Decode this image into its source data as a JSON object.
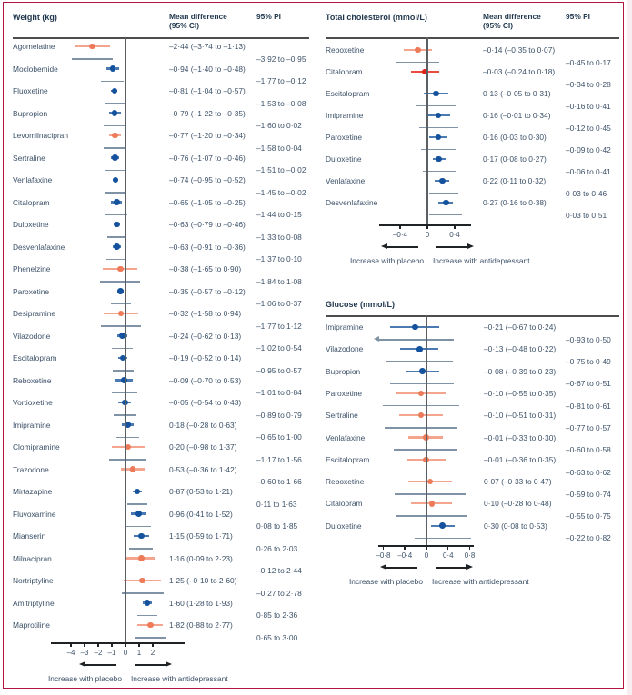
{
  "colors": {
    "frame": "#b01441",
    "blue_dot": "#14529e",
    "blue_line": "#4b79b2",
    "orange_dot": "#ed7b5a",
    "orange_line": "#f4a58e",
    "red_dot": "#e02318",
    "red_line": "#ea4a40",
    "pi_line": "#8093a6",
    "zero_line": "#5a5f63",
    "axis": "#1f2326",
    "text": "#3c5168",
    "heading": "#1f364d",
    "rule": "#4d4d4d"
  },
  "headers": {
    "mean_line1": "Mean difference",
    "mean_line2": "(95% CI)",
    "pi": "95% PI"
  },
  "footer": {
    "left": "Increase with placebo",
    "right": "Increase with antidepressant"
  },
  "chart_data": [
    {
      "type": "forest",
      "title": "Weight (kg)",
      "xlabel": "",
      "xlim": [
        -5.4,
        4.27
      ],
      "grid": false,
      "ticks": [
        {
          "v": -4,
          "label": "–4"
        },
        {
          "v": -3,
          "label": "–3"
        },
        {
          "v": -2,
          "label": "–2"
        },
        {
          "v": -1,
          "label": "–1"
        },
        {
          "v": 0,
          "label": "0"
        },
        {
          "v": 1,
          "label": "1"
        },
        {
          "v": 2,
          "label": "2"
        }
      ],
      "rows": [
        {
          "drug": "Agomelatine",
          "mean": -2.44,
          "ci": [
            -3.74,
            -1.13
          ],
          "pi": [
            -3.92,
            -0.95
          ],
          "mean_ci_text": "–2·44 (–3·74 to –1·13)",
          "pi_text": "–3·92 to –0·95",
          "color": "orange"
        },
        {
          "drug": "Moclobemide",
          "mean": -0.94,
          "ci": [
            -1.4,
            -0.48
          ],
          "pi": [
            -1.77,
            -0.12
          ],
          "mean_ci_text": "–0·94 (–1·40 to –0·48)",
          "pi_text": "–1·77 to –0·12",
          "color": "blue"
        },
        {
          "drug": "Fluoxetine",
          "mean": -0.81,
          "ci": [
            -1.04,
            -0.57
          ],
          "pi": [
            -1.53,
            -0.08
          ],
          "mean_ci_text": "–0·81 (–1·04 to –0·57)",
          "pi_text": "–1·53 to –0·08",
          "color": "blue"
        },
        {
          "drug": "Bupropion",
          "mean": -0.79,
          "ci": [
            -1.22,
            -0.35
          ],
          "pi": [
            -1.6,
            0.02
          ],
          "mean_ci_text": "–0·79 (–1·22 to –0·35)",
          "pi_text": "–1·60 to 0·02",
          "color": "blue"
        },
        {
          "drug": "Levomilnacipran",
          "mean": -0.77,
          "ci": [
            -1.2,
            -0.34
          ],
          "pi": [
            -1.58,
            0.04
          ],
          "mean_ci_text": "–0·77 (–1·20 to –0·34)",
          "pi_text": "–1·58 to 0·04",
          "color": "orange"
        },
        {
          "drug": "Sertraline",
          "mean": -0.76,
          "ci": [
            -1.07,
            -0.46
          ],
          "pi": [
            -1.51,
            -0.02
          ],
          "mean_ci_text": "–0·76 (–1·07 to –0·46)",
          "pi_text": "–1·51 to –0·02",
          "color": "blue"
        },
        {
          "drug": "Venlafaxine",
          "mean": -0.74,
          "ci": [
            -0.95,
            -0.52
          ],
          "pi": [
            -1.45,
            -0.02
          ],
          "mean_ci_text": "–0·74 (–0·95 to –0·52)",
          "pi_text": "–1·45 to –0·02",
          "color": "blue"
        },
        {
          "drug": "Citalopram",
          "mean": -0.65,
          "ci": [
            -1.05,
            -0.25
          ],
          "pi": [
            -1.44,
            0.15
          ],
          "mean_ci_text": "–0·65 (–1·05 to –0·25)",
          "pi_text": "–1·44 to 0·15",
          "color": "blue"
        },
        {
          "drug": "Duloxetine",
          "mean": -0.63,
          "ci": [
            -0.79,
            -0.46
          ],
          "pi": [
            -1.33,
            0.08
          ],
          "mean_ci_text": "–0·63 (–0·79 to –0·46)",
          "pi_text": "–1·33 to 0·08",
          "color": "blue"
        },
        {
          "drug": "Desvenlafaxine",
          "mean": -0.63,
          "ci": [
            -0.91,
            -0.36
          ],
          "pi": [
            -1.37,
            0.1
          ],
          "mean_ci_text": "–0·63 (–0·91 to –0·36)",
          "pi_text": "–1·37 to 0·10",
          "color": "blue"
        },
        {
          "drug": "Phenelzine",
          "mean": -0.38,
          "ci": [
            -1.65,
            0.9
          ],
          "pi": [
            -1.84,
            1.08
          ],
          "mean_ci_text": "–0·38 (–1·65 to 0·90)",
          "pi_text": "–1·84 to 1·08",
          "color": "orange"
        },
        {
          "drug": "Paroxetine",
          "mean": -0.35,
          "ci": [
            -0.57,
            -0.12
          ],
          "pi": [
            -1.06,
            0.37
          ],
          "mean_ci_text": "–0·35 (–0·57 to –0·12)",
          "pi_text": "–1·06 to 0·37",
          "color": "blue"
        },
        {
          "drug": "Desipramine",
          "mean": -0.32,
          "ci": [
            -1.58,
            0.94
          ],
          "pi": [
            -1.77,
            1.12
          ],
          "mean_ci_text": "–0·32 (–1·58 to 0·94)",
          "pi_text": "–1·77 to 1·12",
          "color": "orange"
        },
        {
          "drug": "Vilazodone",
          "mean": -0.24,
          "ci": [
            -0.62,
            0.13
          ],
          "pi": [
            -1.02,
            0.54
          ],
          "mean_ci_text": "–0·24 (–0·62 to 0·13)",
          "pi_text": "–1·02 to 0·54",
          "color": "blue"
        },
        {
          "drug": "Escitalopram",
          "mean": -0.19,
          "ci": [
            -0.52,
            0.14
          ],
          "pi": [
            -0.95,
            0.57
          ],
          "mean_ci_text": "–0·19 (–0·52 to 0·14)",
          "pi_text": "–0·95 to 0·57",
          "color": "blue"
        },
        {
          "drug": "Reboxetine",
          "mean": -0.09,
          "ci": [
            -0.7,
            0.53
          ],
          "pi": [
            -1.01,
            0.84
          ],
          "mean_ci_text": "–0·09 (–0·70 to 0·53)",
          "pi_text": "–1·01 to 0·84",
          "color": "blue"
        },
        {
          "drug": "Vortioxetine",
          "mean": -0.05,
          "ci": [
            -0.54,
            0.43
          ],
          "pi": [
            -0.89,
            0.79
          ],
          "mean_ci_text": "–0·05 (–0·54 to 0·43)",
          "pi_text": "–0·89 to 0·79",
          "color": "blue"
        },
        {
          "drug": "Imipramine",
          "mean": 0.18,
          "ci": [
            -0.28,
            0.63
          ],
          "pi": [
            -0.65,
            1.0
          ],
          "mean_ci_text": "0·18 (–0·28 to 0·63)",
          "pi_text": "–0·65 to 1·00",
          "color": "blue"
        },
        {
          "drug": "Clomipramine",
          "mean": 0.2,
          "ci": [
            -0.98,
            1.37
          ],
          "pi": [
            -1.17,
            1.56
          ],
          "mean_ci_text": "0·20 (–0·98 to 1·37)",
          "pi_text": "–1·17 to 1·56",
          "color": "orange"
        },
        {
          "drug": "Trazodone",
          "mean": 0.53,
          "ci": [
            -0.36,
            1.42
          ],
          "pi": [
            -0.6,
            1.66
          ],
          "mean_ci_text": "0·53 (–0·36 to 1·42)",
          "pi_text": "–0·60 to 1·66",
          "color": "orange"
        },
        {
          "drug": "Mirtazapine",
          "mean": 0.87,
          "ci": [
            0.53,
            1.21
          ],
          "pi": [
            0.11,
            1.63
          ],
          "mean_ci_text": "0·87 (0·53 to 1·21)",
          "pi_text": "0·11 to 1·63",
          "color": "blue"
        },
        {
          "drug": "Fluvoxamine",
          "mean": 0.96,
          "ci": [
            0.41,
            1.52
          ],
          "pi": [
            0.08,
            1.85
          ],
          "mean_ci_text": "0·96 (0·41 to 1·52)",
          "pi_text": "0·08 to 1·85",
          "color": "blue"
        },
        {
          "drug": "Mianserin",
          "mean": 1.15,
          "ci": [
            0.59,
            1.71
          ],
          "pi": [
            0.26,
            2.03
          ],
          "mean_ci_text": "1·15 (0·59 to 1·71)",
          "pi_text": "0·26 to 2·03",
          "color": "blue"
        },
        {
          "drug": "Milnacipran",
          "mean": 1.16,
          "ci": [
            0.09,
            2.23
          ],
          "pi": [
            -0.12,
            2.44
          ],
          "mean_ci_text": "1·16 (0·09 to 2·23)",
          "pi_text": "–0·12 to 2·44",
          "color": "orange"
        },
        {
          "drug": "Nortriptyline",
          "mean": 1.25,
          "ci": [
            -0.1,
            2.6
          ],
          "pi": [
            -0.27,
            2.78
          ],
          "mean_ci_text": "1·25 (–0·10 to 2·60)",
          "pi_text": "–0·27 to 2·78",
          "color": "orange"
        },
        {
          "drug": "Amitriptyline",
          "mean": 1.6,
          "ci": [
            1.28,
            1.93
          ],
          "pi": [
            0.85,
            2.36
          ],
          "mean_ci_text": "1·60 (1·28 to 1·93)",
          "pi_text": "0·85 to 2·36",
          "color": "blue"
        },
        {
          "drug": "Maprotiline",
          "mean": 1.82,
          "ci": [
            0.88,
            2.77
          ],
          "pi": [
            0.65,
            3.0
          ],
          "mean_ci_text": "1·82 (0·88 to 2·77)",
          "pi_text": "0·65 to 3·00",
          "color": "orange"
        }
      ]
    },
    {
      "type": "forest",
      "title": "Total cholesterol (mmol/L)",
      "xlabel": "",
      "xlim": [
        -0.693,
        0.627
      ],
      "grid": false,
      "ticks": [
        {
          "v": -0.4,
          "label": "–0·4"
        },
        {
          "v": 0,
          "label": "0"
        },
        {
          "v": 0.4,
          "label": "0·4"
        }
      ],
      "rows": [
        {
          "drug": "Reboxetine",
          "mean": -0.14,
          "ci": [
            -0.35,
            0.07
          ],
          "pi": [
            -0.45,
            0.17
          ],
          "mean_ci_text": "–0·14 (–0·35 to 0·07)",
          "pi_text": "–0·45 to 0·17",
          "color": "orange"
        },
        {
          "drug": "Citalopram",
          "mean": -0.03,
          "ci": [
            -0.24,
            0.18
          ],
          "pi": [
            -0.34,
            0.28
          ],
          "mean_ci_text": "–0·03 (–0·24 to 0·18)",
          "pi_text": "–0·34 to 0·28",
          "color": "red"
        },
        {
          "drug": "Escitalopram",
          "mean": 0.13,
          "ci": [
            -0.05,
            0.31
          ],
          "pi": [
            -0.16,
            0.41
          ],
          "mean_ci_text": "0·13 (–0·05 to 0·31)",
          "pi_text": "–0·16 to 0·41",
          "color": "blue"
        },
        {
          "drug": "Imipramine",
          "mean": 0.16,
          "ci": [
            -0.01,
            0.34
          ],
          "pi": [
            -0.12,
            0.45
          ],
          "mean_ci_text": "0·16 (–0·01 to 0·34)",
          "pi_text": "–0·12 to 0·45",
          "color": "blue"
        },
        {
          "drug": "Paroxetine",
          "mean": 0.16,
          "ci": [
            0.03,
            0.3
          ],
          "pi": [
            -0.09,
            0.42
          ],
          "mean_ci_text": "0·16 (0·03 to 0·30)",
          "pi_text": "–0·09 to 0·42",
          "color": "blue"
        },
        {
          "drug": "Duloxetine",
          "mean": 0.17,
          "ci": [
            0.08,
            0.27
          ],
          "pi": [
            -0.06,
            0.41
          ],
          "mean_ci_text": "0·17 (0·08 to 0·27)",
          "pi_text": "–0·06 to 0·41",
          "color": "blue"
        },
        {
          "drug": "Venlafaxine",
          "mean": 0.22,
          "ci": [
            0.11,
            0.32
          ],
          "pi": [
            0.03,
            0.46
          ],
          "mean_ci_text": "0·22 (0·11 to 0·32)",
          "pi_text": "0·03 to 0·46",
          "color": "blue"
        },
        {
          "drug": "Desvenlafaxine",
          "mean": 0.27,
          "ci": [
            0.16,
            0.38
          ],
          "pi": [
            0.03,
            0.51
          ],
          "mean_ci_text": "0·27 (0·16 to 0·38)",
          "pi_text": "0·03 to 0·51",
          "color": "blue"
        }
      ]
    },
    {
      "type": "forest",
      "title": "Glucose (mmol/L)",
      "xlabel": "",
      "xlim": [
        -0.875,
        0.859
      ],
      "grid": false,
      "ticks": [
        {
          "v": -0.8,
          "label": "–0·8"
        },
        {
          "v": -0.4,
          "label": "–0·4"
        },
        {
          "v": 0,
          "label": "0"
        },
        {
          "v": 0.4,
          "label": "0·4"
        },
        {
          "v": 0.8,
          "label": "0·8"
        }
      ],
      "rows": [
        {
          "drug": "Imipramine",
          "mean": -0.21,
          "ci": [
            -0.67,
            0.24
          ],
          "pi": [
            -0.93,
            0.5
          ],
          "mean_ci_text": "–0·21 (–0·67 to 0·24)",
          "pi_text": "–0·93 to 0·50",
          "color": "blue"
        },
        {
          "drug": "Vilazodone",
          "mean": -0.13,
          "ci": [
            -0.48,
            0.22
          ],
          "pi": [
            -0.75,
            0.49
          ],
          "mean_ci_text": "–0·13 (–0·48 to 0·22)",
          "pi_text": "–0·75 to 0·49",
          "color": "blue"
        },
        {
          "drug": "Bupropion",
          "mean": -0.08,
          "ci": [
            -0.39,
            0.23
          ],
          "pi": [
            -0.67,
            0.51
          ],
          "mean_ci_text": "–0·08 (–0·39 to 0·23)",
          "pi_text": "–0·67 to 0·51",
          "color": "blue"
        },
        {
          "drug": "Paroxetine",
          "mean": -0.1,
          "ci": [
            -0.55,
            0.35
          ],
          "pi": [
            -0.81,
            0.61
          ],
          "mean_ci_text": "–0·10 (–0·55 to 0·35)",
          "pi_text": "–0·81 to 0·61",
          "color": "orange"
        },
        {
          "drug": "Sertraline",
          "mean": -0.1,
          "ci": [
            -0.51,
            0.31
          ],
          "pi": [
            -0.77,
            0.57
          ],
          "mean_ci_text": "–0·10 (–0·51 to 0·31)",
          "pi_text": "–0·77 to 0·57",
          "color": "orange"
        },
        {
          "drug": "Venlafaxine",
          "mean": -0.01,
          "ci": [
            -0.33,
            0.3
          ],
          "pi": [
            -0.6,
            0.58
          ],
          "mean_ci_text": "–0·01 (–0·33 to 0·30)",
          "pi_text": "–0·60 to 0·58",
          "color": "orange"
        },
        {
          "drug": "Escitalopram",
          "mean": -0.01,
          "ci": [
            -0.36,
            0.35
          ],
          "pi": [
            -0.63,
            0.62
          ],
          "mean_ci_text": "–0·01 (–0·36 to 0·35)",
          "pi_text": "–0·63 to 0·62",
          "color": "orange"
        },
        {
          "drug": "Reboxetine",
          "mean": 0.07,
          "ci": [
            -0.33,
            0.47
          ],
          "pi": [
            -0.59,
            0.74
          ],
          "mean_ci_text": "0·07 (–0·33 to 0·47)",
          "pi_text": "–0·59 to 0·74",
          "color": "orange"
        },
        {
          "drug": "Citalopram",
          "mean": 0.1,
          "ci": [
            -0.28,
            0.48
          ],
          "pi": [
            -0.55,
            0.75
          ],
          "mean_ci_text": "0·10 (–0·28 to 0·48)",
          "pi_text": "–0·55 to 0·75",
          "color": "orange"
        },
        {
          "drug": "Duloxetine",
          "mean": 0.3,
          "ci": [
            0.08,
            0.53
          ],
          "pi": [
            -0.22,
            0.82
          ],
          "mean_ci_text": "0·30 (0·08 to 0·53)",
          "pi_text": "–0·22 to 0·82",
          "color": "blue"
        }
      ]
    }
  ]
}
